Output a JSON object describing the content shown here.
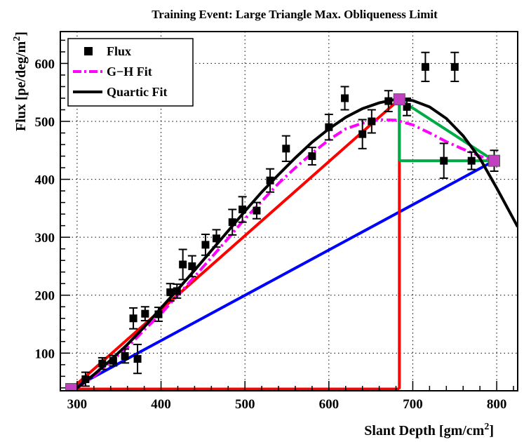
{
  "chart_data": {
    "type": "scatter",
    "title": "Training Event: Large Triangle Max. Obliqueness Limit",
    "xlabel": {
      "main": "Slant Depth  [gm/cm",
      "sup": "2",
      "close": "]"
    },
    "ylabel": {
      "main": "Flux  [pe/deg/m",
      "sup": "2",
      "close": "]"
    },
    "xlim": [
      280,
      825
    ],
    "ylim": [
      35,
      655
    ],
    "x_ticks": [
      300,
      400,
      500,
      600,
      700,
      800
    ],
    "y_ticks": [
      100,
      200,
      300,
      400,
      500,
      600
    ],
    "grid": true,
    "legend_position": "top-left",
    "legend": [
      {
        "label": "Flux",
        "style": "marker"
      },
      {
        "label": "G−H Fit",
        "style": "dashdot"
      },
      {
        "label": "Quartic Fit",
        "style": "solid"
      }
    ],
    "flux_points": [
      {
        "x": 310,
        "y": 55,
        "err": 12
      },
      {
        "x": 330,
        "y": 82,
        "err": 10
      },
      {
        "x": 343,
        "y": 87,
        "err": 9
      },
      {
        "x": 357,
        "y": 95,
        "err": 12
      },
      {
        "x": 367,
        "y": 160,
        "err": 18
      },
      {
        "x": 372,
        "y": 90,
        "err": 25
      },
      {
        "x": 381,
        "y": 168,
        "err": 12
      },
      {
        "x": 397,
        "y": 167,
        "err": 12
      },
      {
        "x": 411,
        "y": 205,
        "err": 15
      },
      {
        "x": 419,
        "y": 207,
        "err": 12
      },
      {
        "x": 426,
        "y": 253,
        "err": 26
      },
      {
        "x": 437,
        "y": 250,
        "err": 18
      },
      {
        "x": 453,
        "y": 287,
        "err": 18
      },
      {
        "x": 466,
        "y": 298,
        "err": 15
      },
      {
        "x": 485,
        "y": 326,
        "err": 22
      },
      {
        "x": 497,
        "y": 348,
        "err": 22
      },
      {
        "x": 514,
        "y": 346,
        "err": 14
      },
      {
        "x": 530,
        "y": 398,
        "err": 20
      },
      {
        "x": 549,
        "y": 453,
        "err": 22
      },
      {
        "x": 580,
        "y": 440,
        "err": 15
      },
      {
        "x": 600,
        "y": 490,
        "err": 22
      },
      {
        "x": 619,
        "y": 540,
        "err": 20
      },
      {
        "x": 640,
        "y": 478,
        "err": 25
      },
      {
        "x": 651,
        "y": 500,
        "err": 20
      },
      {
        "x": 671,
        "y": 535,
        "err": 18
      },
      {
        "x": 693,
        "y": 525,
        "err": 15
      },
      {
        "x": 715,
        "y": 594,
        "err": 25
      },
      {
        "x": 737,
        "y": 432,
        "err": 30
      },
      {
        "x": 750,
        "y": 594,
        "err": 25
      },
      {
        "x": 770,
        "y": 432,
        "err": 15
      },
      {
        "x": 797,
        "y": 432,
        "err": 18
      }
    ],
    "gh_fit": {
      "x": [
        300,
        320,
        340,
        360,
        380,
        400,
        420,
        440,
        460,
        480,
        500,
        520,
        540,
        560,
        580,
        600,
        620,
        640,
        660,
        680,
        700,
        720,
        740,
        760,
        780,
        800
      ],
      "y": [
        40,
        60,
        85,
        110,
        140,
        168,
        200,
        232,
        265,
        298,
        332,
        362,
        393,
        420,
        445,
        468,
        487,
        497,
        503,
        502,
        494,
        480,
        465,
        452,
        440,
        430
      ]
    },
    "quartic_fit": {
      "x": [
        300,
        320,
        340,
        360,
        380,
        400,
        420,
        440,
        460,
        480,
        500,
        520,
        540,
        560,
        580,
        600,
        620,
        640,
        660,
        680,
        700,
        720,
        740,
        760,
        780,
        800,
        825
      ],
      "y": [
        40,
        63,
        88,
        115,
        145,
        178,
        210,
        243,
        277,
        311,
        345,
        378,
        408,
        437,
        464,
        487,
        507,
        522,
        532,
        538,
        536,
        525,
        505,
        475,
        436,
        385,
        318
      ]
    },
    "triangles": {
      "start": {
        "x": 293,
        "y": 38
      },
      "peak": {
        "x": 684,
        "y": 538
      },
      "end": {
        "x": 797,
        "y": 432
      },
      "small_corner": {
        "x": 684,
        "y": 432
      },
      "big_corner": {
        "x": 684,
        "y": 38
      }
    },
    "colors": {
      "flux": "#000000",
      "gh_fit": "#ff00ff",
      "quartic_fit": "#000000",
      "big_triangle": "#ff0000",
      "small_triangle": "#00aa44",
      "base_line": "#0000ff",
      "vertex_marker": "#c040c0"
    }
  }
}
